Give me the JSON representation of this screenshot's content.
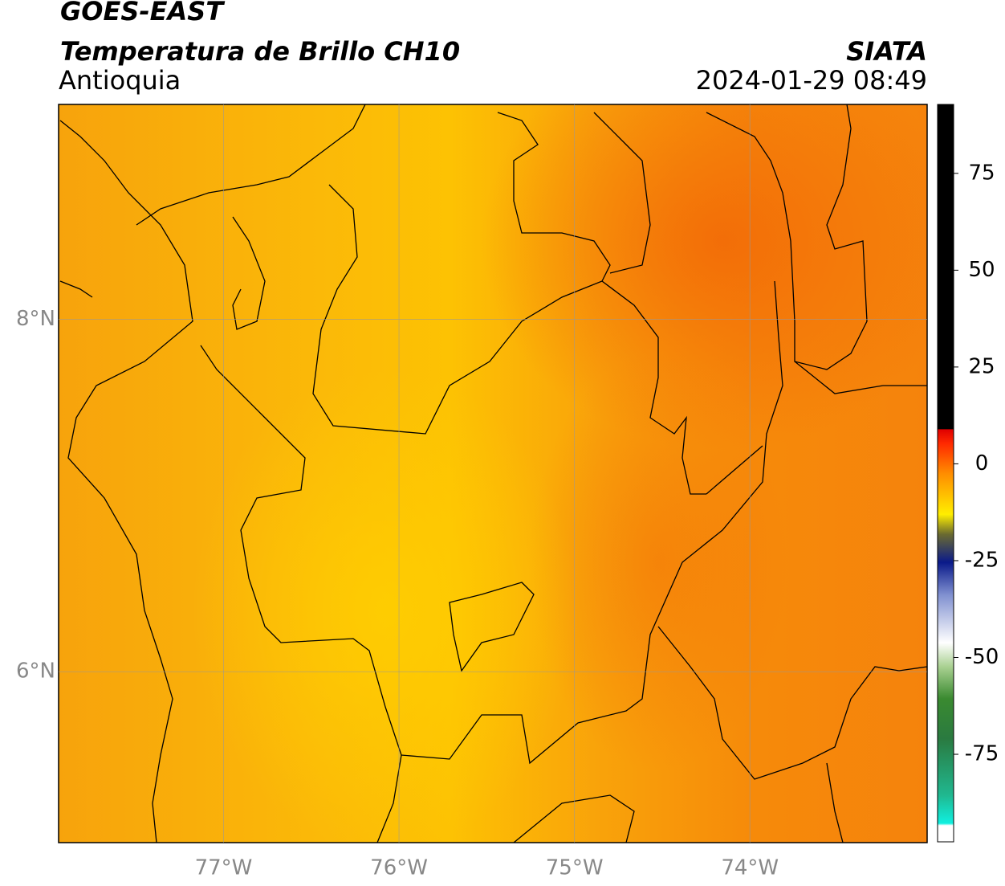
{
  "header": {
    "title": "GOES-EAST",
    "subtitle": "Temperatura de Brillo CH10",
    "region": "Antioquia",
    "source": "SIATA",
    "datetime": "2024-01-29 08:49"
  },
  "map": {
    "xlim": [
      -77.94,
      -72.99
    ],
    "ylim": [
      5.03,
      9.22
    ],
    "xticks": [
      {
        "value": -77,
        "label": "77°W"
      },
      {
        "value": -76,
        "label": "76°W"
      },
      {
        "value": -75,
        "label": "75°W"
      },
      {
        "value": -74,
        "label": "74°W"
      }
    ],
    "yticks": [
      {
        "value": 8,
        "label": "8°N"
      },
      {
        "value": 6,
        "label": "6°N"
      }
    ],
    "grid": true
  },
  "colorbar": {
    "lim": [
      -97.6,
      92.8
    ],
    "ticks": [
      75,
      50,
      25,
      0,
      -25,
      -50,
      -75
    ]
  }
}
